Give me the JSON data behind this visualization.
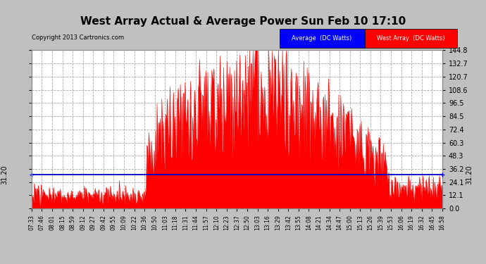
{
  "title": "West Array Actual & Average Power Sun Feb 10 17:10",
  "copyright": "Copyright 2013 Cartronics.com",
  "average_value": 31.2,
  "y_max": 144.8,
  "y_min": 0.0,
  "y_ticks": [
    0.0,
    12.1,
    24.1,
    36.2,
    48.3,
    60.3,
    72.4,
    84.5,
    96.5,
    108.6,
    120.7,
    132.7,
    144.8
  ],
  "legend_avg_label": "Average  (DC Watts)",
  "legend_west_label": "West Array  (DC Watts)",
  "outer_bg_color": "#c0c0c0",
  "plot_bg_color": "#ffffff",
  "grid_color": "#aaaaaa",
  "bar_color": "#ff0000",
  "avg_line_color": "#0000cc",
  "x_tick_labels": [
    "07:33",
    "07:46",
    "08:01",
    "08:15",
    "08:59",
    "09:12",
    "09:27",
    "09:42",
    "09:55",
    "10:09",
    "10:22",
    "10:36",
    "10:50",
    "11:03",
    "11:18",
    "11:31",
    "11:44",
    "11:57",
    "12:10",
    "12:23",
    "12:37",
    "12:50",
    "13:03",
    "13:16",
    "13:29",
    "13:42",
    "13:55",
    "14:08",
    "14:21",
    "14:34",
    "14:47",
    "15:00",
    "15:13",
    "15:26",
    "15:39",
    "15:53",
    "16:06",
    "16:19",
    "16:32",
    "16:45",
    "16:58"
  ],
  "num_points": 600
}
